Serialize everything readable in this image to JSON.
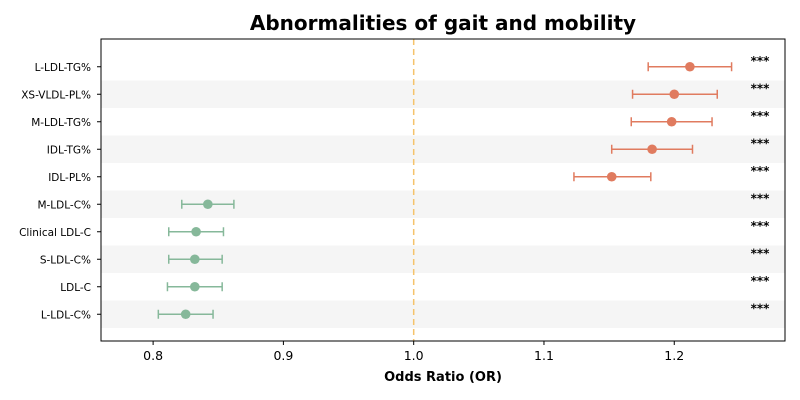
{
  "chart_data": {
    "type": "forest",
    "title": "Abnormalities of gait and mobility",
    "xlabel": "Odds Ratio (OR)",
    "xlim": [
      0.76,
      1.285
    ],
    "xticks": [
      0.8,
      0.9,
      1.0,
      1.1,
      1.2
    ],
    "xtick_labels": [
      "0.8",
      "0.9",
      "1.0",
      "1.1",
      "1.2"
    ],
    "reference_line": 1.0,
    "reference_color": "#f5c36b",
    "colors": {
      "positive": "#e07b5f",
      "negative": "#86b89a",
      "band": "#f5f5f5"
    },
    "rows": [
      {
        "label": "L-LDL-TG%",
        "or": 1.212,
        "lo": 1.18,
        "hi": 1.244,
        "sig": "***"
      },
      {
        "label": "XS-VLDL-PL%",
        "or": 1.2,
        "lo": 1.168,
        "hi": 1.233,
        "sig": "***"
      },
      {
        "label": "M-LDL-TG%",
        "or": 1.198,
        "lo": 1.167,
        "hi": 1.229,
        "sig": "***"
      },
      {
        "label": "IDL-TG%",
        "or": 1.183,
        "lo": 1.152,
        "hi": 1.214,
        "sig": "***"
      },
      {
        "label": "IDL-PL%",
        "or": 1.152,
        "lo": 1.123,
        "hi": 1.182,
        "sig": "***"
      },
      {
        "label": "M-LDL-C%",
        "or": 0.842,
        "lo": 0.822,
        "hi": 0.862,
        "sig": "***"
      },
      {
        "label": "Clinical LDL-C",
        "or": 0.833,
        "lo": 0.812,
        "hi": 0.854,
        "sig": "***"
      },
      {
        "label": "S-LDL-C%",
        "or": 0.832,
        "lo": 0.812,
        "hi": 0.853,
        "sig": "***"
      },
      {
        "label": "LDL-C",
        "or": 0.832,
        "lo": 0.811,
        "hi": 0.853,
        "sig": "***"
      },
      {
        "label": "L-LDL-C%",
        "or": 0.825,
        "lo": 0.804,
        "hi": 0.846,
        "sig": "***"
      }
    ]
  }
}
